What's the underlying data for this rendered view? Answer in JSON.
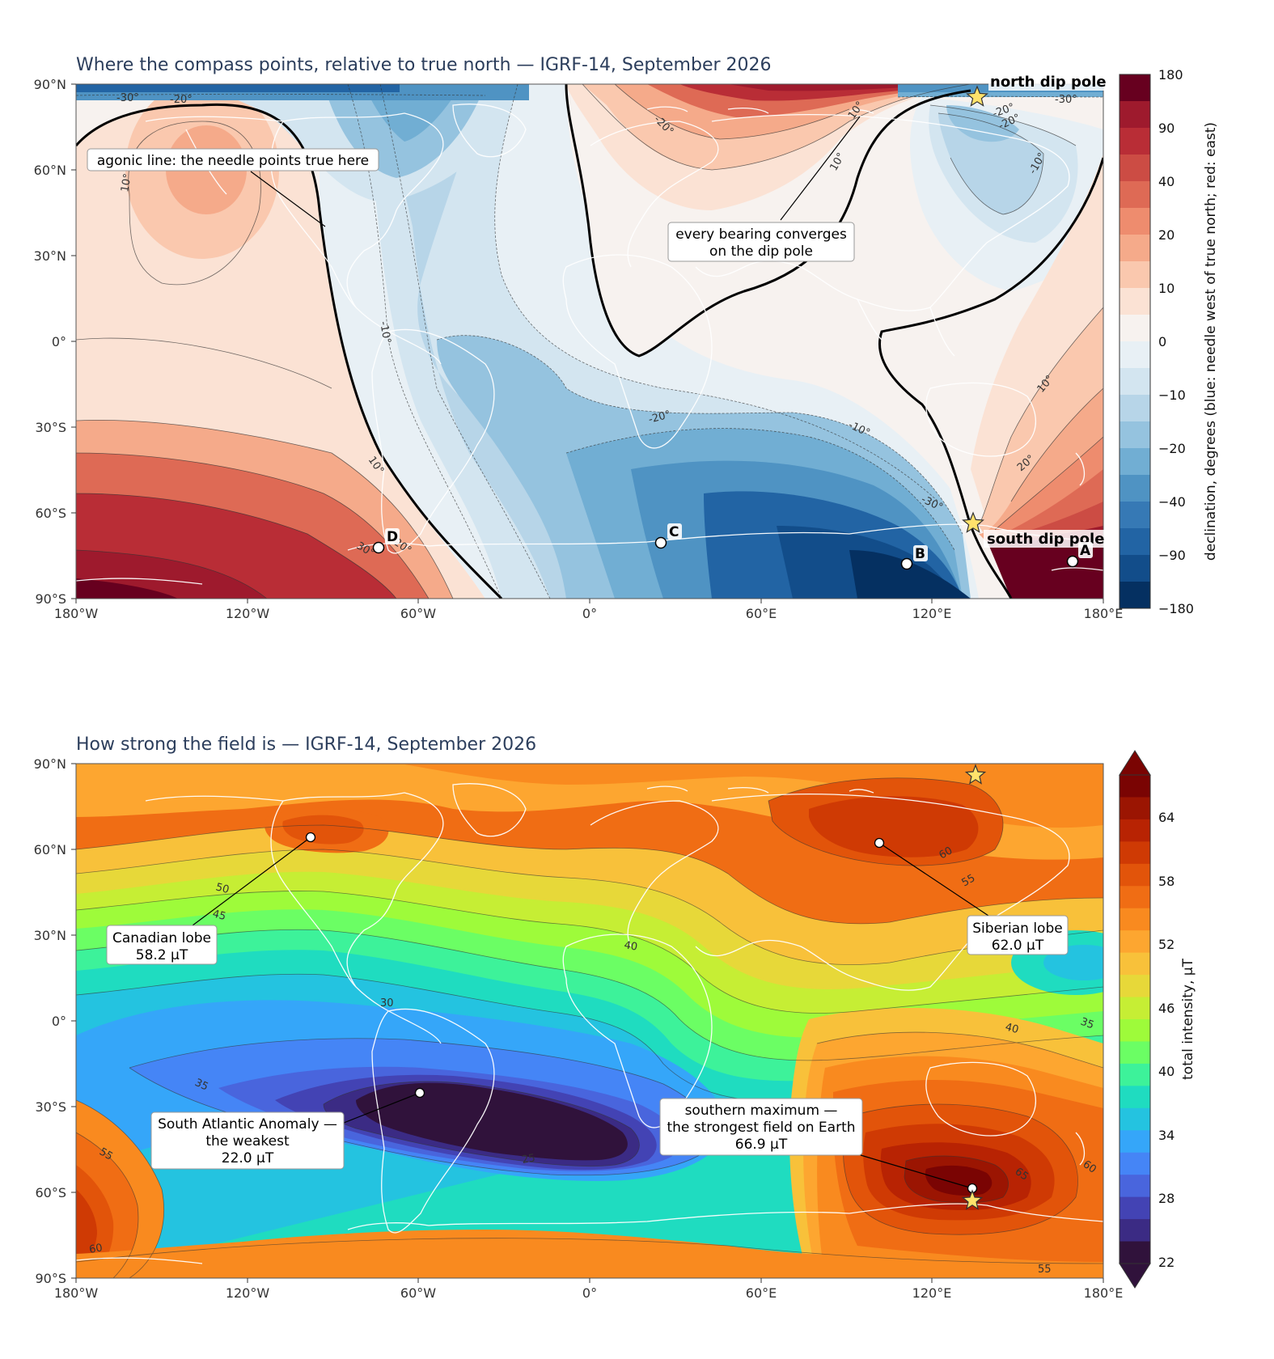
{
  "declination_panel": {
    "title": "Where the compass points, relative to true north — IGRF-14, September 2026",
    "y_ticks": [
      "90°N",
      "60°N",
      "30°N",
      "0°",
      "30°S",
      "60°S",
      "90°S"
    ],
    "x_ticks": [
      "180°W",
      "120°W",
      "60°W",
      "0°",
      "60°E",
      "120°E",
      "180°E"
    ],
    "colorbar_label": "declination, degrees  (blue: needle west of true north; red: east)",
    "colorbar_ticks": [
      "180",
      "90",
      "40",
      "20",
      "10",
      "0",
      "−10",
      "−20",
      "−40",
      "−90",
      "−180"
    ],
    "colorbar_colors": [
      "#67001f",
      "#9e1a2d",
      "#b92d36",
      "#cc4c44",
      "#de6a55",
      "#ee8c6e",
      "#f5aa8a",
      "#fac8ae",
      "#fbe2d4",
      "#f7f2ef",
      "#e8f0f5",
      "#d3e5f0",
      "#b7d5e8",
      "#95c3df",
      "#71aed3",
      "#4f93c3",
      "#3679b5",
      "#2264a4",
      "#124d8a",
      "#053061"
    ],
    "contour_labels": [
      "-30°",
      "-20°",
      "10°",
      "-10°",
      "-20°",
      "-10°",
      "10°",
      "10°",
      "-30°",
      "-20°",
      "10°",
      "30°",
      "-20°",
      "20°",
      "-30°",
      "-20°",
      "20°",
      "10°",
      "-10°"
    ],
    "annotations": {
      "agonic": "agonic line: the needle points true here",
      "bearing_line1": "every bearing converges",
      "bearing_line2": "on the dip pole",
      "north_pole": "north dip pole",
      "south_pole": "south dip pole"
    },
    "points": [
      "A",
      "B",
      "C",
      "D"
    ],
    "pole_marker_icon": "star-icon"
  },
  "intensity_panel": {
    "title": "How strong the field is — IGRF-14, September 2026",
    "y_ticks": [
      "90°N",
      "60°N",
      "30°N",
      "0°",
      "30°S",
      "60°S",
      "90°S"
    ],
    "x_ticks": [
      "180°W",
      "120°W",
      "60°W",
      "0°",
      "60°E",
      "120°E",
      "180°E"
    ],
    "colorbar_label": "total intensity, µT",
    "colorbar_ticks": [
      "64",
      "58",
      "52",
      "46",
      "40",
      "34",
      "28",
      "22"
    ],
    "colorbar_colors": [
      "#7a0403",
      "#9b1502",
      "#b82303",
      "#cf3a04",
      "#e2540a",
      "#f06d14",
      "#f98a1f",
      "#fda630",
      "#f8c13a",
      "#e7d839",
      "#c6ee34",
      "#9efb3a",
      "#6bfe64",
      "#3df29a",
      "#1fdcc0",
      "#24c3e0",
      "#35a6f9",
      "#4585f6",
      "#4965dd",
      "#4343b4",
      "#3b2b84",
      "#30123b"
    ],
    "contour_labels": [
      "50",
      "45",
      "60",
      "55",
      "40",
      "30",
      "35",
      "35",
      "40",
      "45",
      "50",
      "55",
      "25",
      "65",
      "60",
      "60",
      "55"
    ],
    "annotations": {
      "canadian_line1": "Canadian lobe",
      "canadian_line2": "58.2 µT",
      "siberian_line1": "Siberian lobe",
      "siberian_line2": "62.0 µT",
      "saa_line1": "South Atlantic Anomaly —",
      "saa_line2": "the weakest",
      "saa_line3": "22.0 µT",
      "smax_line1": "southern maximum —",
      "smax_line2": "the strongest field on Earth",
      "smax_line3": "66.9 µT"
    },
    "pole_marker_icon": "star-icon"
  }
}
